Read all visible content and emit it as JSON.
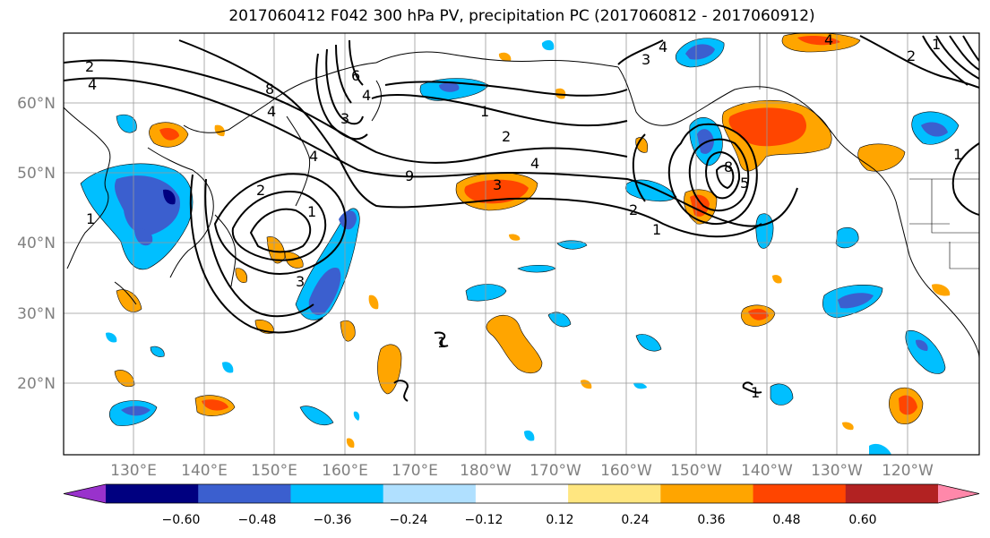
{
  "title": "2017060412 F042 300 hPa PV, precipitation PC (2017060812 - 2017060912)",
  "lat_labels": [
    "60°N",
    "50°N",
    "40°N",
    "30°N",
    "20°N"
  ],
  "lon_labels": [
    "130°E",
    "140°E",
    "150°E",
    "160°E",
    "170°E",
    "180°W",
    "170°W",
    "160°W",
    "150°W",
    "140°W",
    "130°W",
    "120°W"
  ],
  "colorbar": {
    "tick_labels": [
      "−0.60",
      "−0.48",
      "−0.36",
      "−0.24",
      "−0.12",
      "0.12",
      "0.24",
      "0.36",
      "0.48",
      "0.60"
    ],
    "colors": [
      "#9932cc",
      "#000080",
      "#3b5fcf",
      "#00bfff",
      "#b0e0ff",
      "#ffffff",
      "#ffe680",
      "#ffa500",
      "#ff4500",
      "#b22222",
      "#ff88aa"
    ]
  },
  "contour_labels": [
    "2",
    "4",
    "1",
    "8",
    "4",
    "4",
    "3",
    "1",
    "2",
    "4",
    "2",
    "1",
    "3",
    "1",
    "2",
    "4",
    "9",
    "3",
    "2",
    "1",
    "4",
    "8",
    "5",
    "1",
    "1",
    "1",
    "4",
    "6",
    "3"
  ],
  "colors": {
    "pos_light": "#ffe680",
    "pos_mid": "#ffa500",
    "pos_strong": "#ff4500",
    "neg_light": "#b0e0ff",
    "neg_mid": "#00bfff",
    "neg_strong": "#3b5fcf",
    "neg_deep": "#000080"
  }
}
